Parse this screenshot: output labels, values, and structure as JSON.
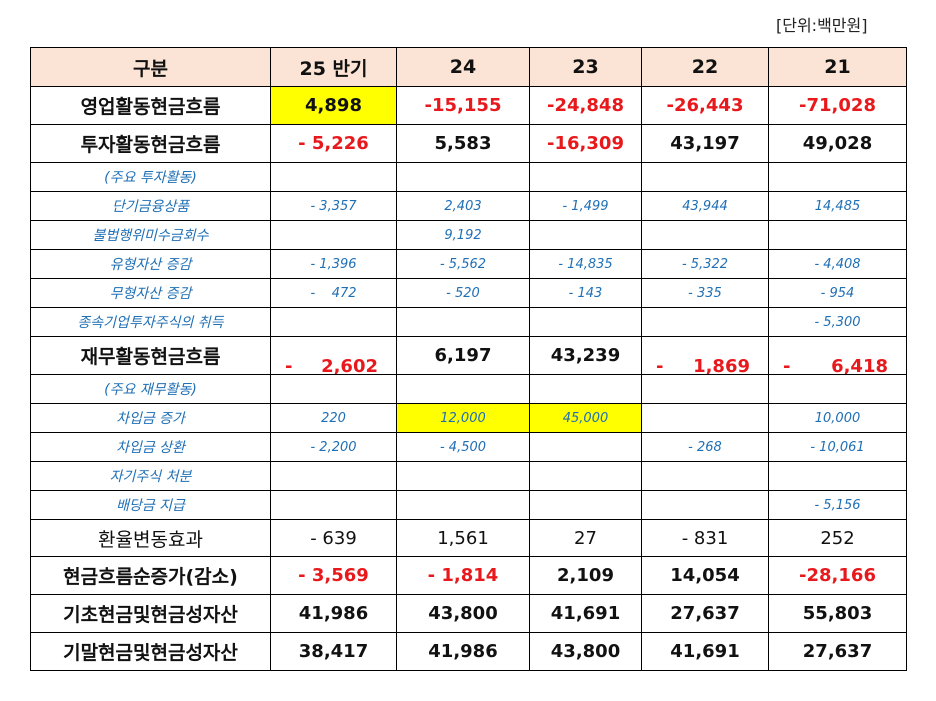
{
  "unit_note": "[단위:백만원]",
  "header": [
    "구분",
    "25 반기",
    "24",
    "23",
    "22",
    "21"
  ],
  "rows": {
    "op": {
      "label": "영업활동현금흐름",
      "v": [
        "4,898",
        "-15,155",
        "-24,848",
        "-26,443",
        "-71,028"
      ]
    },
    "inv": {
      "label": "투자활동현금흐름",
      "v": [
        "- 5,226",
        "5,583",
        "-16,309",
        "43,197",
        "49,028"
      ]
    },
    "inv_h": {
      "label": "(주요  투자활동)"
    },
    "inv_1": {
      "label": "단기금융상품",
      "v": [
        "- 3,357",
        "2,403",
        "- 1,499",
        "43,944",
        "14,485"
      ]
    },
    "inv_2": {
      "label": "불법행위미수금회수",
      "v": [
        "",
        "9,192",
        "",
        "",
        ""
      ]
    },
    "inv_3": {
      "label": "유형자산  증감",
      "v": [
        "- 1,396",
        "- 5,562",
        "- 14,835",
        "- 5,322",
        "- 4,408"
      ]
    },
    "inv_4": {
      "label": "무형자산  증감",
      "v": [
        "-    472",
        "- 520",
        "- 143",
        "- 335",
        "- 954"
      ]
    },
    "inv_5": {
      "label": "종속기업투자주식의  취득",
      "v": [
        "",
        "",
        "",
        "",
        "- 5,300"
      ]
    },
    "fin": {
      "label": "재무활동현금흐름",
      "v": [
        "2,602",
        "6,197",
        "43,239",
        "1,869",
        "6,418"
      ],
      "sign": [
        "-",
        "",
        "",
        "-",
        "-"
      ]
    },
    "fin_h": {
      "label": "(주요  재무활동)"
    },
    "fin_1": {
      "label": "차입금  증가",
      "v": [
        "220",
        "12,000",
        "45,000",
        "",
        "10,000"
      ]
    },
    "fin_2": {
      "label": "차입금  상환",
      "v": [
        "- 2,200",
        "- 4,500",
        "",
        "- 268",
        "- 10,061"
      ]
    },
    "fin_3": {
      "label": "자기주식  처분",
      "v": [
        "",
        "",
        "",
        "",
        ""
      ]
    },
    "fin_4": {
      "label": "배당금  지급",
      "v": [
        "",
        "",
        "",
        "",
        "- 5,156"
      ]
    },
    "fx": {
      "label": "환율변동효과",
      "v": [
        "- 639",
        "1,561",
        "27",
        "- 831",
        "252"
      ]
    },
    "net": {
      "label": "현금흐름순증가(감소)",
      "v": [
        "- 3,569",
        "- 1,814",
        "2,109",
        "14,054",
        "-28,166"
      ]
    },
    "begin": {
      "label": "기초현금및현금성자산",
      "v": [
        "41,986",
        "43,800",
        "41,691",
        "27,637",
        "55,803"
      ]
    },
    "end": {
      "label": "기말현금및현금성자산",
      "v": [
        "38,417",
        "41,986",
        "43,800",
        "41,691",
        "27,637"
      ]
    }
  },
  "colors": {
    "header_bg": "#fbe4d5",
    "highlight": "#ffff00",
    "negative": "#e8191c",
    "sub_text": "#1f6fb5"
  }
}
